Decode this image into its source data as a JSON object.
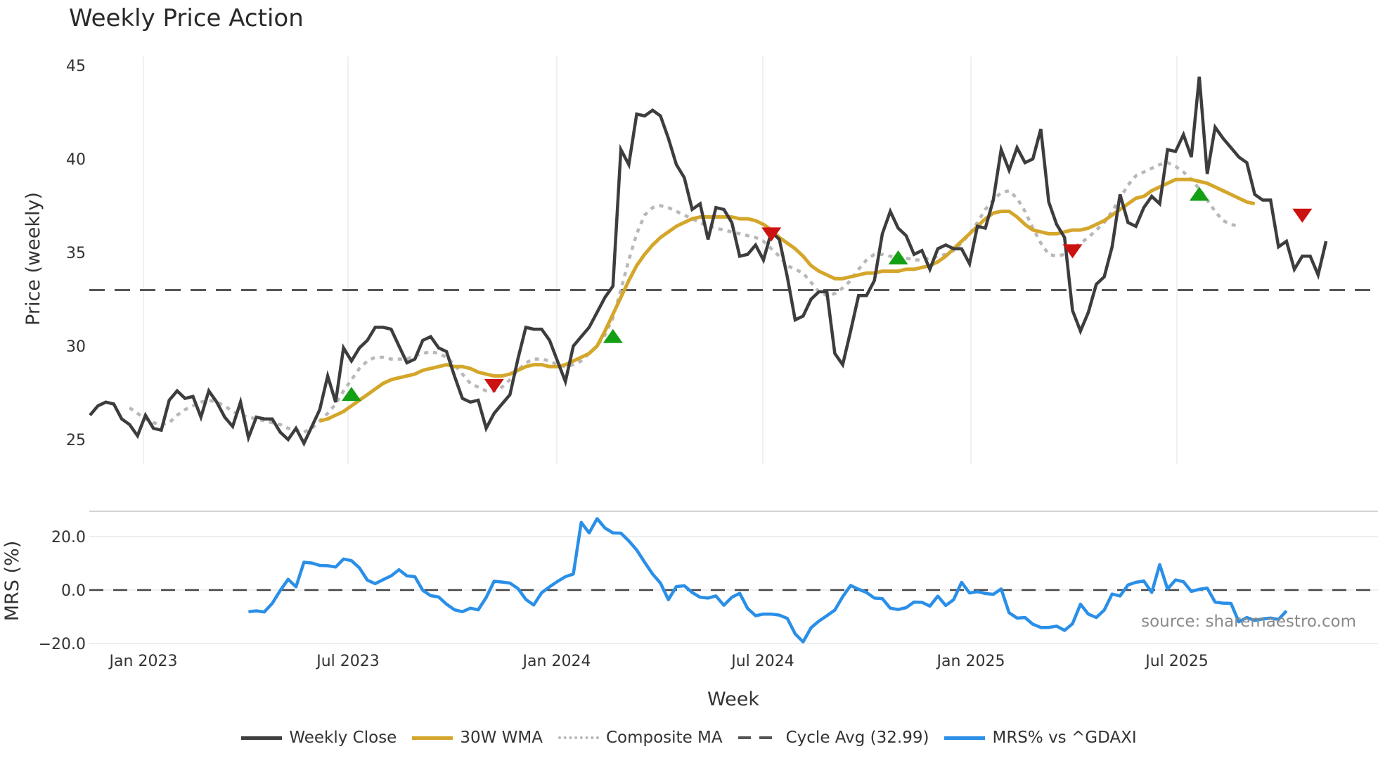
{
  "header": {
    "title": "Weekly Price Action"
  },
  "colors": {
    "close": "#3d3d3d",
    "wma": "#d4a62a",
    "composite": "#b8b8b8",
    "cycle": "#555555",
    "mrs": "#2a8fe8",
    "buy": "#14a014",
    "sell": "#cc1111",
    "grid": "#e6eaee"
  },
  "axes": {
    "price_ylabel": "Price (weekly)",
    "mrs_ylabel": "MRS (%)",
    "xlabel": "Week",
    "price_ticks": [
      "45",
      "40",
      "35",
      "30",
      "25"
    ],
    "mrs_ticks": [
      "20.0",
      "0.0",
      "−20.0"
    ],
    "x_ticks": [
      "Jan 2023",
      "Jul 2023",
      "Jan 2024",
      "Jul 2024",
      "Jan 2025",
      "Jul 2025"
    ]
  },
  "legend": {
    "items": [
      {
        "label": "Weekly Close",
        "style": "solid",
        "color": "#3d3d3d"
      },
      {
        "label": "30W WMA",
        "style": "solid",
        "color": "#d4a62a"
      },
      {
        "label": "Composite MA",
        "style": "dotted",
        "color": "#b8b8b8"
      },
      {
        "label": "Cycle Avg (32.99)",
        "style": "dashed",
        "color": "#555555"
      },
      {
        "label": "MRS% vs ^GDAXI",
        "style": "solid",
        "color": "#2a8fe8"
      }
    ]
  },
  "watermark": "source: sharemaestro.com",
  "chart_data": [
    {
      "type": "line",
      "title": "Weekly Price Action",
      "xlabel": "Week",
      "ylabel": "Price (weekly)",
      "ylim": [
        24,
        45.5
      ],
      "x_ticks": [
        "Jan 2023",
        "Jul 2023",
        "Jan 2024",
        "Jul 2024",
        "Jan 2025",
        "Jul 2025"
      ],
      "cycle_avg": 32.99,
      "series": [
        {
          "name": "Weekly Close",
          "values": [
            26.3,
            26.8,
            27.0,
            26.9,
            26.1,
            25.8,
            25.2,
            26.3,
            25.6,
            25.5,
            27.1,
            27.6,
            27.2,
            27.3,
            26.2,
            27.6,
            27.0,
            26.2,
            25.7,
            27.0,
            25.1,
            26.2,
            26.1,
            26.1,
            25.4,
            25.0,
            25.6,
            24.8,
            25.7,
            26.6,
            28.4,
            27.0,
            29.9,
            29.2,
            29.9,
            30.3,
            31.0,
            31.0,
            30.9,
            30.0,
            29.1,
            29.3,
            30.3,
            30.5,
            29.9,
            29.7,
            28.4,
            27.2,
            27.0,
            27.1,
            25.6,
            26.4,
            26.9,
            27.4,
            29.3,
            31.0,
            30.9,
            30.9,
            30.3,
            29.2,
            28.1,
            30.0,
            30.5,
            31.0,
            31.8,
            32.6,
            33.2,
            40.5,
            39.7,
            42.4,
            42.3,
            42.6,
            42.3,
            41.1,
            39.7,
            39.0,
            37.3,
            37.6,
            35.7,
            37.4,
            37.3,
            36.6,
            34.8,
            34.9,
            35.4,
            34.6,
            36.1,
            35.7,
            33.7,
            31.4,
            31.6,
            32.5,
            32.9,
            32.9,
            29.6,
            29.0,
            30.8,
            32.7,
            32.7,
            33.5,
            36.0,
            37.2,
            36.3,
            35.9,
            34.9,
            35.1,
            34.1,
            35.2,
            35.4,
            35.2,
            35.2,
            34.4,
            36.4,
            36.3,
            37.8,
            40.5,
            39.4,
            40.6,
            39.8,
            40.0,
            41.6,
            37.7,
            36.5,
            35.8,
            31.9,
            30.8,
            31.8,
            33.3,
            33.7,
            35.3,
            38.1,
            36.6,
            36.4,
            37.4,
            38.0,
            37.6,
            40.5,
            40.4,
            41.3,
            40.1,
            44.4,
            39.2,
            41.7,
            41.1,
            40.6,
            40.1,
            39.8,
            38.1,
            37.8,
            37.8,
            35.3,
            35.6,
            34.1,
            34.8,
            34.8,
            33.8,
            35.6
          ]
        },
        {
          "name": "30W WMA",
          "values": [
            null,
            null,
            null,
            null,
            null,
            null,
            null,
            null,
            null,
            null,
            null,
            null,
            null,
            null,
            null,
            null,
            null,
            null,
            null,
            null,
            null,
            null,
            null,
            null,
            null,
            null,
            null,
            null,
            null,
            26.0,
            26.1,
            26.3,
            26.5,
            26.8,
            27.1,
            27.4,
            27.7,
            28.0,
            28.2,
            28.3,
            28.4,
            28.5,
            28.7,
            28.8,
            28.9,
            29.0,
            28.9,
            28.9,
            28.8,
            28.6,
            28.5,
            28.4,
            28.4,
            28.5,
            28.7,
            28.9,
            29.0,
            29.0,
            28.9,
            28.9,
            29.0,
            29.2,
            29.4,
            29.6,
            30.0,
            30.8,
            31.7,
            32.6,
            33.5,
            34.3,
            34.9,
            35.4,
            35.8,
            36.1,
            36.4,
            36.6,
            36.8,
            36.9,
            36.9,
            36.9,
            36.9,
            36.9,
            36.8,
            36.8,
            36.7,
            36.5,
            36.2,
            35.8,
            35.5,
            35.2,
            34.8,
            34.3,
            34.0,
            33.8,
            33.6,
            33.6,
            33.7,
            33.8,
            33.9,
            33.9,
            34.0,
            34.0,
            34.0,
            34.1,
            34.1,
            34.2,
            34.3,
            34.5,
            34.8,
            35.2,
            35.6,
            36.0,
            36.4,
            36.8,
            37.1,
            37.2,
            37.2,
            36.9,
            36.5,
            36.2,
            36.1,
            36.0,
            36.0,
            36.1,
            36.2,
            36.2,
            36.3,
            36.5,
            36.7,
            37.0,
            37.3,
            37.6,
            37.9,
            38.0,
            38.3,
            38.5,
            38.7,
            38.9,
            38.9,
            38.9,
            38.8,
            38.7,
            38.5,
            38.3,
            38.1,
            37.9,
            37.7,
            37.6
          ]
        },
        {
          "name": "Composite MA",
          "values": [
            null,
            null,
            null,
            null,
            null,
            26.7,
            26.4,
            26.1,
            25.9,
            25.8,
            25.9,
            26.3,
            26.6,
            26.8,
            27.0,
            27.1,
            27.0,
            26.8,
            26.5,
            26.3,
            26.2,
            26.1,
            26.0,
            25.9,
            25.8,
            25.6,
            25.5,
            25.4,
            25.6,
            26.0,
            26.4,
            26.9,
            27.6,
            28.2,
            28.8,
            29.2,
            29.4,
            29.4,
            29.3,
            29.3,
            29.3,
            29.5,
            29.6,
            29.7,
            29.6,
            29.4,
            29.0,
            28.5,
            28.0,
            27.8,
            27.6,
            27.6,
            27.8,
            28.2,
            28.7,
            29.1,
            29.3,
            29.3,
            29.2,
            29.0,
            28.9,
            29.0,
            29.2,
            29.6,
            30.0,
            30.6,
            31.5,
            33.0,
            34.6,
            36.0,
            37.0,
            37.4,
            37.5,
            37.4,
            37.2,
            37.0,
            36.8,
            36.6,
            36.4,
            36.3,
            36.2,
            36.1,
            36.0,
            35.9,
            35.8,
            35.6,
            35.2,
            34.8,
            34.3,
            34.1,
            33.9,
            33.4,
            32.9,
            32.7,
            32.8,
            33.1,
            33.5,
            34.1,
            34.6,
            34.9,
            34.9,
            34.8,
            34.7,
            34.7,
            34.6,
            34.6,
            34.7,
            34.8,
            34.9,
            35.1,
            35.5,
            36.0,
            36.6,
            37.3,
            37.8,
            38.2,
            38.3,
            37.9,
            37.2,
            36.3,
            35.5,
            34.9,
            34.8,
            34.9,
            35.2,
            35.5,
            35.8,
            36.2,
            36.6,
            37.2,
            37.9,
            38.6,
            39.1,
            39.3,
            39.5,
            39.7,
            39.8,
            39.6,
            39.3,
            38.9,
            38.4,
            37.8,
            37.2,
            36.7,
            36.5,
            36.4
          ]
        }
      ],
      "signals": [
        {
          "type": "buy",
          "index": 33,
          "value": 27.4
        },
        {
          "type": "sell",
          "index": 51,
          "value": 27.9
        },
        {
          "type": "buy",
          "index": 66,
          "value": 30.5
        },
        {
          "type": "sell",
          "index": 86,
          "value": 36.0
        },
        {
          "type": "buy",
          "index": 102,
          "value": 34.7
        },
        {
          "type": "sell",
          "index": 124,
          "value": 35.1
        },
        {
          "type": "buy",
          "index": 140,
          "value": 38.1
        },
        {
          "type": "sell",
          "index": 153,
          "value": 37.0
        }
      ]
    },
    {
      "type": "line",
      "title": "MRS",
      "xlabel": "Week",
      "ylabel": "MRS (%)",
      "ylim": [
        -22,
        30
      ],
      "series": [
        {
          "name": "MRS% vs ^GDAXI",
          "start_index": 20,
          "values": [
            -8.1,
            -7.8,
            -8.2,
            -5.0,
            -0.2,
            4.0,
            1.2,
            10.4,
            10.1,
            9.2,
            9.1,
            8.6,
            11.6,
            11.0,
            8.3,
            3.7,
            2.4,
            3.9,
            5.3,
            7.6,
            5.3,
            5.0,
            -0.1,
            -2.1,
            -2.6,
            -5.3,
            -7.4,
            -8.1,
            -6.8,
            -7.4,
            -2.8,
            3.3,
            3.0,
            2.6,
            0.6,
            -3.5,
            -5.6,
            -1.0,
            1.2,
            3.2,
            5.0,
            6.0,
            25.3,
            21.4,
            26.7,
            23.2,
            21.4,
            21.3,
            18.4,
            15.0,
            10.4,
            6.0,
            2.6,
            -3.6,
            1.3,
            1.6,
            -0.9,
            -2.7,
            -3.0,
            -2.2,
            -5.7,
            -2.7,
            -1.2,
            -6.9,
            -9.6,
            -9.0,
            -9.0,
            -9.4,
            -10.6,
            -16.4,
            -19.4,
            -14.1,
            -11.6,
            -9.6,
            -7.5,
            -2.5,
            1.7,
            0.3,
            -0.9,
            -3.0,
            -3.2,
            -6.8,
            -7.3,
            -6.6,
            -4.5,
            -4.6,
            -6.0,
            -2.3,
            -5.8,
            -3.6,
            2.9,
            -1.1,
            -0.6,
            -1.3,
            -1.6,
            0.4,
            -8.5,
            -10.5,
            -10.3,
            -12.8,
            -14.0,
            -14.0,
            -13.5,
            -15.1,
            -12.6,
            -5.3,
            -9.0,
            -10.3,
            -7.5,
            -1.5,
            -2.2,
            1.9,
            2.9,
            3.4,
            -0.9,
            9.5,
            0.4,
            3.8,
            3.1,
            -0.5,
            0.3,
            0.7,
            -4.5,
            -4.9,
            -5.0,
            -11.9,
            -10.3,
            -11.4,
            -10.8,
            -10.5,
            -11.0,
            -7.8
          ]
        }
      ],
      "ref_line": 0.0
    }
  ]
}
